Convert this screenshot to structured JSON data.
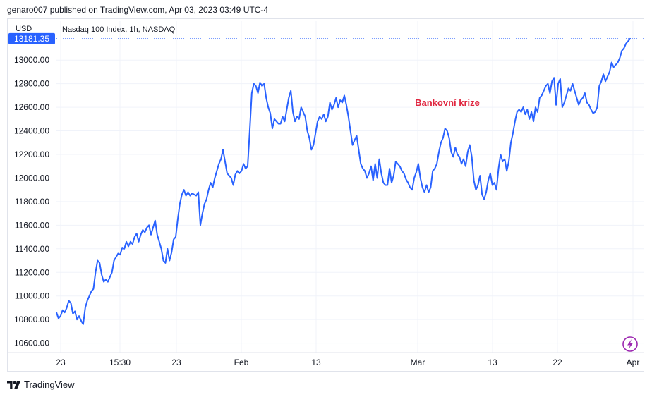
{
  "header": {
    "published_line": "genaro007 published on TradingView.com, Apr 03, 2023 03:49 UTC-4"
  },
  "chart_header": {
    "currency": "USD",
    "symbol_line": "Nasdaq 100 Index, 1h, NASDAQ"
  },
  "footer": {
    "brand": "TradingView",
    "logo_icon": "tradingview-logo-icon"
  },
  "lightning_icon": "lightning-bolt-icon",
  "colors": {
    "line": "#2962ff",
    "annotation": "#e0253f",
    "last_price_bg": "#2962ff",
    "lightning": "#9c27b0"
  },
  "chart_data": {
    "type": "line",
    "title": "",
    "xlabel": "",
    "ylabel": "",
    "ylim": [
      10520,
      13330
    ],
    "y_ticks": [
      "10600.00",
      "10800.00",
      "11000.00",
      "11200.00",
      "11400.00",
      "11600.00",
      "11800.00",
      "12000.00",
      "12200.00",
      "12400.00",
      "12600.00",
      "12800.00",
      "13000.00"
    ],
    "x_ticks": [
      "23",
      "15:30",
      "23",
      "Feb",
      "13",
      "Mar",
      "13",
      "22",
      "Apr"
    ],
    "last_price": "13181.35",
    "annotation": "Bankovní krize",
    "grid": true,
    "series": [
      {
        "values": [
          10860,
          10810,
          10830,
          10880,
          10860,
          10900,
          10960,
          10940,
          10850,
          10870,
          10800,
          10830,
          10790,
          10760,
          10900,
          10960,
          11000,
          11040,
          11060,
          11200,
          11300,
          11280,
          11180,
          11120,
          11140,
          11120,
          11160,
          11200,
          11300,
          11330,
          11360,
          11350,
          11410,
          11400,
          11460,
          11420,
          11460,
          11440,
          11500,
          11530,
          11460,
          11520,
          11560,
          11540,
          11580,
          11600,
          11520,
          11580,
          11640,
          11520,
          11460,
          11400,
          11300,
          11280,
          11400,
          11300,
          11370,
          11480,
          11500,
          11650,
          11780,
          11860,
          11900,
          11850,
          11880,
          11850,
          11870,
          11860,
          11850,
          11880,
          11600,
          11700,
          11780,
          11820,
          11900,
          11960,
          11920,
          12000,
          12060,
          12120,
          12160,
          12240,
          12140,
          12040,
          12020,
          12000,
          11940,
          12030,
          12060,
          12040,
          12060,
          12120,
          12080,
          12100,
          12400,
          12720,
          12800,
          12780,
          12720,
          12810,
          12780,
          12800,
          12680,
          12600,
          12550,
          12420,
          12500,
          12480,
          12460,
          12460,
          12520,
          12480,
          12580,
          12680,
          12740,
          12560,
          12480,
          12520,
          12500,
          12600,
          12560,
          12520,
          12400,
          12340,
          12240,
          12280,
          12380,
          12480,
          12520,
          12500,
          12540,
          12480,
          12520,
          12640,
          12580,
          12620,
          12680,
          12600,
          12660,
          12640,
          12700,
          12620,
          12520,
          12400,
          12280,
          12320,
          12360,
          12240,
          12120,
          12080,
          12060,
          12000,
          12040,
          12100,
          11980,
          12120,
          12000,
          12160,
          12040,
          11960,
          11940,
          11940,
          12080,
          11960,
          12020,
          12140,
          12120,
          12100,
          12060,
          12040,
          11990,
          11960,
          11920,
          11900,
          12000,
          12050,
          12120,
          12000,
          11920,
          11880,
          11940,
          11880,
          11920,
          12060,
          12080,
          12120,
          12220,
          12300,
          12340,
          12420,
          12400,
          12340,
          12220,
          12180,
          12260,
          12200,
          12180,
          12120,
          12160,
          12100,
          12220,
          12280,
          12180,
          11980,
          11900,
          11940,
          12020,
          11860,
          11820,
          11880,
          11980,
          12040,
          11940,
          11960,
          11900,
          12080,
          12200,
          12140,
          12160,
          12060,
          12140,
          12300,
          12380,
          12480,
          12560,
          12580,
          12560,
          12600,
          12540,
          12580,
          12500,
          12560,
          12480,
          12600,
          12560,
          12680,
          12700,
          12740,
          12780,
          12800,
          12720,
          12820,
          12850,
          12620,
          12800,
          12840,
          12600,
          12640,
          12700,
          12760,
          12740,
          12800,
          12740,
          12680,
          12620,
          12660,
          12680,
          12720,
          12640,
          12620,
          12580,
          12550,
          12560,
          12600,
          12780,
          12820,
          12880,
          12820,
          12860,
          12900,
          12980,
          12940,
          12960,
          12980,
          13020,
          13080,
          13100,
          13140,
          13160,
          13181
        ]
      }
    ]
  }
}
